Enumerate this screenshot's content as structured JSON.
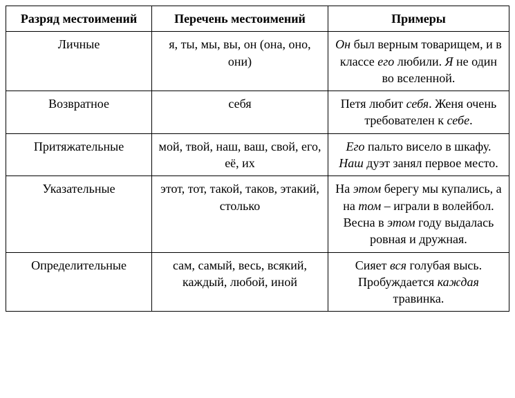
{
  "table": {
    "columns": [
      "Разряд местоимений",
      "Перечень местоимений",
      "Примеры"
    ],
    "rows": [
      {
        "category": "Личные",
        "list": "я, ты, мы, вы, он (она, оно, они)",
        "example_html": "<span class=\"italic\">Он</span> был верным товарищем, и в классе <span class=\"italic\">его</span> любили. <span class=\"italic\">Я</span> не один во вселенной."
      },
      {
        "category": "Возвратное",
        "list": "себя",
        "example_html": "Петя любит <span class=\"italic\">себя</span>. Женя очень требователен к <span class=\"italic\">себе</span>."
      },
      {
        "category": "Притяжательные",
        "list": "мой, твой, наш, ваш, свой, его, её, их",
        "example_html": "<span class=\"italic\">Его</span> пальто висело в шкафу. <span class=\"italic\">Наш</span> дуэт занял первое место."
      },
      {
        "category": "Указательные",
        "list": "этот, тот, такой, таков, этакий, столько",
        "example_html": "На <span class=\"italic\">этом</span> берегу мы купались, а на <span class=\"italic\">том</span> – играли в волейбол. Весна в <span class=\"italic\">этом</span> году выдалась ровная и дружная."
      },
      {
        "category": "Определительные",
        "list": "сам, самый, весь, всякий, каждый, любой, иной",
        "example_html": "Сияет <span class=\"italic\">вся</span> голубая высь. Пробуждается <span class=\"italic\">каждая</span> травинка."
      }
    ],
    "styling": {
      "border_color": "#000000",
      "border_width": 1.5,
      "background_color": "#ffffff",
      "header_font_weight": "bold",
      "font_family": "Times New Roman",
      "body_font_size": 18,
      "text_align_category": "center",
      "text_align_list": "center",
      "text_align_example": "center",
      "column_widths": [
        "29%",
        "35%",
        "36%"
      ]
    }
  }
}
